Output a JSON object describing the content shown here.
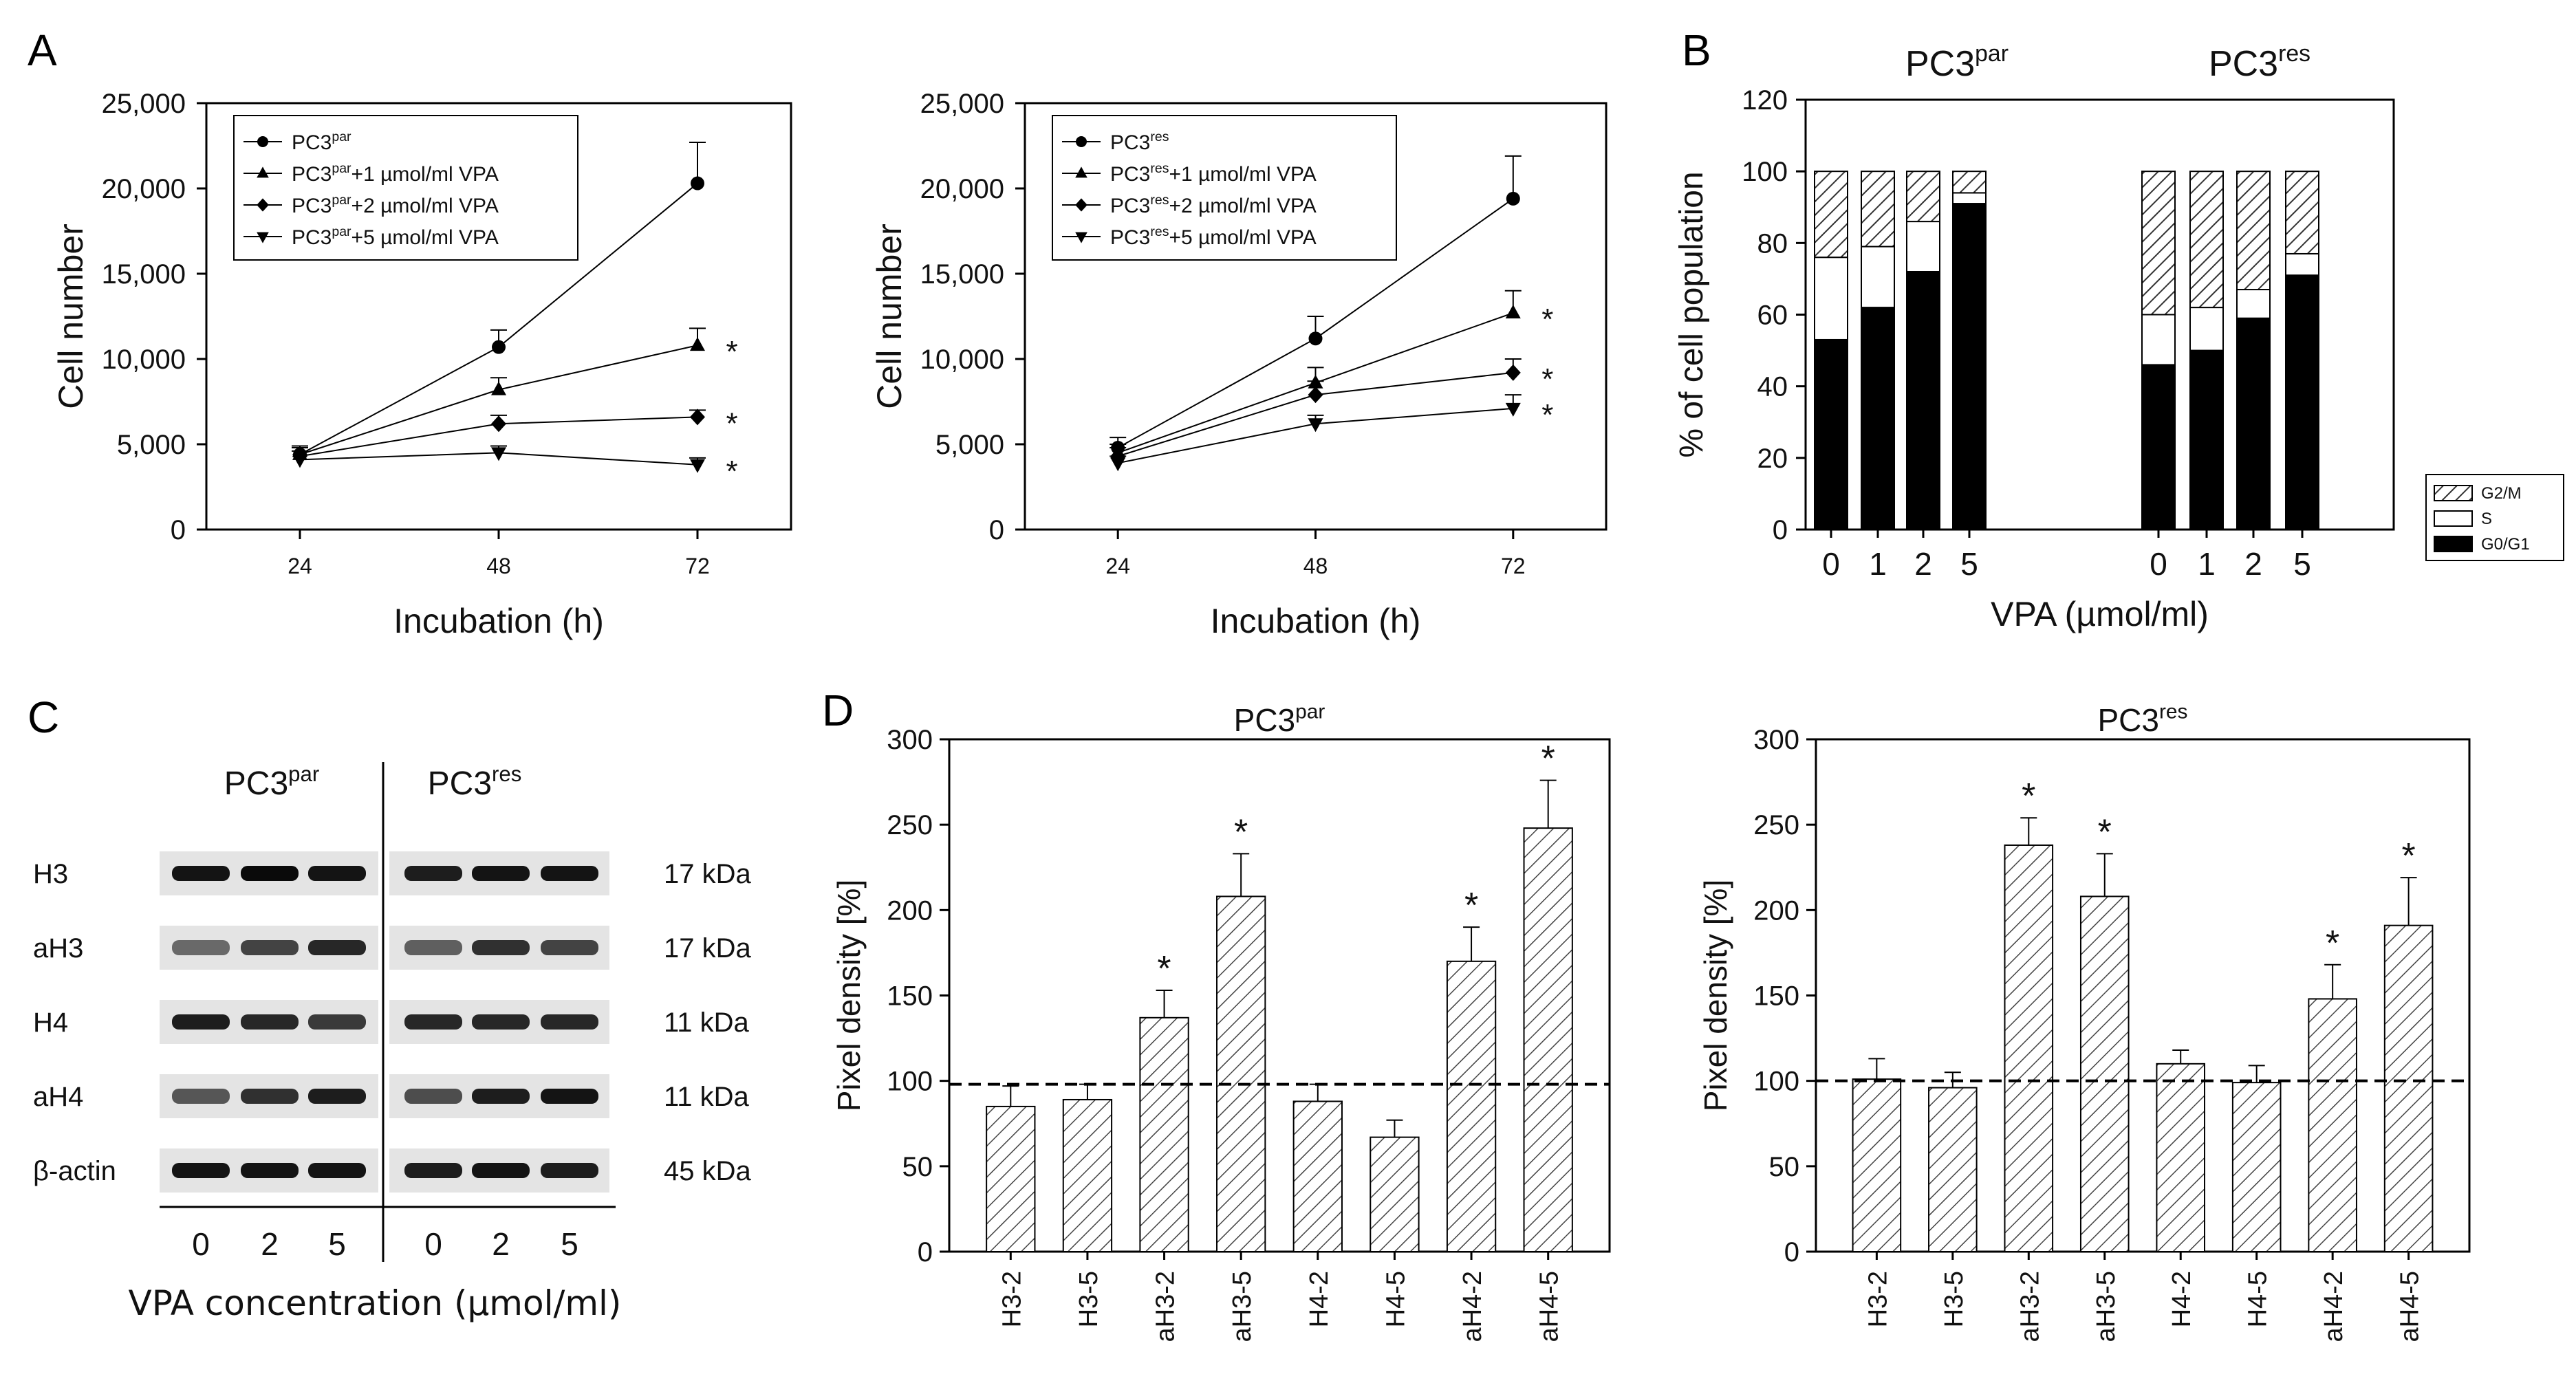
{
  "panel_labels": {
    "A": "A",
    "B": "B",
    "C": "C",
    "D": "D"
  },
  "chart_data": [
    {
      "id": "A1",
      "type": "line",
      "x": [
        24,
        48,
        72
      ],
      "xticks": [
        "24",
        "48",
        "72"
      ],
      "yticks": [
        "0",
        "5,000",
        "10,000",
        "15,000",
        "20,000",
        "25,000"
      ],
      "ylim": [
        0,
        25000
      ],
      "xlabel": "Incubation (h)",
      "ylabel": "Cell number",
      "legend_position": "top-left",
      "series": [
        {
          "name": "PC3",
          "sup": "par",
          "suffix": "",
          "marker": "circle",
          "values": [
            4400,
            10700,
            20300
          ],
          "errors": [
            500,
            1000,
            2400
          ],
          "sig": ""
        },
        {
          "name": "PC3",
          "sup": "par",
          "suffix": "+1 µmol/ml VPA",
          "marker": "triangle-up",
          "values": [
            4400,
            8200,
            10800
          ],
          "errors": [
            500,
            700,
            1000
          ],
          "sig": "*"
        },
        {
          "name": "PC3",
          "sup": "par",
          "suffix": "+2 µmol/ml VPA",
          "marker": "diamond",
          "values": [
            4300,
            6200,
            6600
          ],
          "errors": [
            500,
            500,
            400
          ],
          "sig": "*"
        },
        {
          "name": "PC3",
          "sup": "par",
          "suffix": "+5 µmol/ml VPA",
          "marker": "triangle-down",
          "values": [
            4100,
            4500,
            3800
          ],
          "errors": [
            500,
            400,
            400
          ],
          "sig": "*"
        }
      ]
    },
    {
      "id": "A2",
      "type": "line",
      "x": [
        24,
        48,
        72
      ],
      "xticks": [
        "24",
        "48",
        "72"
      ],
      "yticks": [
        "0",
        "5,000",
        "10,000",
        "15,000",
        "20,000",
        "25,000"
      ],
      "ylim": [
        0,
        25000
      ],
      "xlabel": "Incubation (h)",
      "ylabel": "Cell number",
      "legend_position": "top-left",
      "series": [
        {
          "name": "PC3",
          "sup": "res",
          "suffix": "",
          "marker": "circle",
          "values": [
            4800,
            11200,
            19400
          ],
          "errors": [
            600,
            1300,
            2500
          ],
          "sig": ""
        },
        {
          "name": "PC3",
          "sup": "res",
          "suffix": "+1 µmol/ml VPA",
          "marker": "triangle-up",
          "values": [
            4500,
            8600,
            12700
          ],
          "errors": [
            500,
            900,
            1300
          ],
          "sig": "*"
        },
        {
          "name": "PC3",
          "sup": "res",
          "suffix": "+2 µmol/ml VPA",
          "marker": "diamond",
          "values": [
            4300,
            7900,
            9200
          ],
          "errors": [
            500,
            800,
            800
          ],
          "sig": "*"
        },
        {
          "name": "PC3",
          "sup": "res",
          "suffix": "+5 µmol/ml VPA",
          "marker": "triangle-down",
          "values": [
            3900,
            6200,
            7100
          ],
          "errors": [
            400,
            500,
            800
          ],
          "sig": "*"
        }
      ]
    },
    {
      "id": "B",
      "type": "bar",
      "stacked": true,
      "group_titles": [
        {
          "name": "PC3",
          "sup": "par"
        },
        {
          "name": "PC3",
          "sup": "res"
        }
      ],
      "categories": [
        "0",
        "1",
        "2",
        "5",
        "0",
        "1",
        "2",
        "5"
      ],
      "ylim": [
        0,
        120
      ],
      "yticks": [
        "0",
        "20",
        "40",
        "60",
        "80",
        "100",
        "120"
      ],
      "xlabel": "VPA (µmol/ml)",
      "ylabel": "% of cell population",
      "legend_position": "right",
      "series": [
        {
          "name": "G0/G1",
          "color": "#000000",
          "values": [
            53,
            62,
            72,
            91,
            46,
            50,
            59,
            71
          ]
        },
        {
          "name": "S",
          "color": "#ffffff",
          "values": [
            23,
            17,
            14,
            3,
            14,
            12,
            8,
            6
          ]
        },
        {
          "name": "G2/M",
          "color": "hatch",
          "values": [
            24,
            21,
            14,
            6,
            40,
            38,
            33,
            23
          ]
        }
      ]
    },
    {
      "id": "D1",
      "type": "bar",
      "title": {
        "name": "PC3",
        "sup": "par"
      },
      "categories": [
        "H3-2",
        "H3-5",
        "aH3-2",
        "aH3-5",
        "H4-2",
        "H4-5",
        "aH4-2",
        "aH4-5"
      ],
      "values": [
        85,
        89,
        137,
        208,
        88,
        67,
        170,
        248
      ],
      "errors": [
        12,
        9,
        16,
        25,
        10,
        10,
        20,
        28
      ],
      "sig": [
        "",
        "",
        "*",
        "*",
        "",
        "",
        "*",
        "*"
      ],
      "reference_line": 98,
      "ylim": [
        0,
        300
      ],
      "yticks": [
        "0",
        "50",
        "100",
        "150",
        "200",
        "250",
        "300"
      ],
      "ylabel": "Pixel density [%]"
    },
    {
      "id": "D2",
      "type": "bar",
      "title": {
        "name": "PC3",
        "sup": "res"
      },
      "categories": [
        "H3-2",
        "H3-5",
        "aH3-2",
        "aH3-5",
        "H4-2",
        "H4-5",
        "aH4-2",
        "aH4-5"
      ],
      "values": [
        101,
        96,
        238,
        208,
        110,
        99,
        148,
        191
      ],
      "errors": [
        12,
        9,
        16,
        25,
        8,
        10,
        20,
        28
      ],
      "sig": [
        "",
        "",
        "*",
        "*",
        "",
        "",
        "*",
        "*"
      ],
      "reference_line": 100,
      "ylim": [
        0,
        300
      ],
      "yticks": [
        "0",
        "50",
        "100",
        "150",
        "200",
        "250",
        "300"
      ],
      "ylabel": "Pixel density [%]"
    }
  ],
  "western_blot": {
    "group_titles": [
      {
        "name": "PC3",
        "sup": "par"
      },
      {
        "name": "PC3",
        "sup": "res"
      }
    ],
    "rows": [
      {
        "label": "H3",
        "kda": "17 kDa",
        "intensity": [
          0.95,
          1.0,
          0.95,
          0.9,
          0.95,
          0.95
        ]
      },
      {
        "label": "aH3",
        "kda": "17 kDa",
        "intensity": [
          0.5,
          0.7,
          0.85,
          0.55,
          0.8,
          0.7
        ]
      },
      {
        "label": "H4",
        "kda": "11 kDa",
        "intensity": [
          0.9,
          0.85,
          0.75,
          0.85,
          0.85,
          0.85
        ]
      },
      {
        "label": "aH4",
        "kda": "11 kDa",
        "intensity": [
          0.6,
          0.8,
          0.9,
          0.65,
          0.9,
          0.95
        ]
      },
      {
        "label": "β-actin",
        "kda": "45 kDa",
        "intensity": [
          0.95,
          0.95,
          0.95,
          0.9,
          0.95,
          0.9
        ]
      }
    ],
    "lanes": [
      "0",
      "2",
      "5",
      "0",
      "2",
      "5"
    ],
    "xlabel": "VPA concentration (µmol/ml)"
  }
}
